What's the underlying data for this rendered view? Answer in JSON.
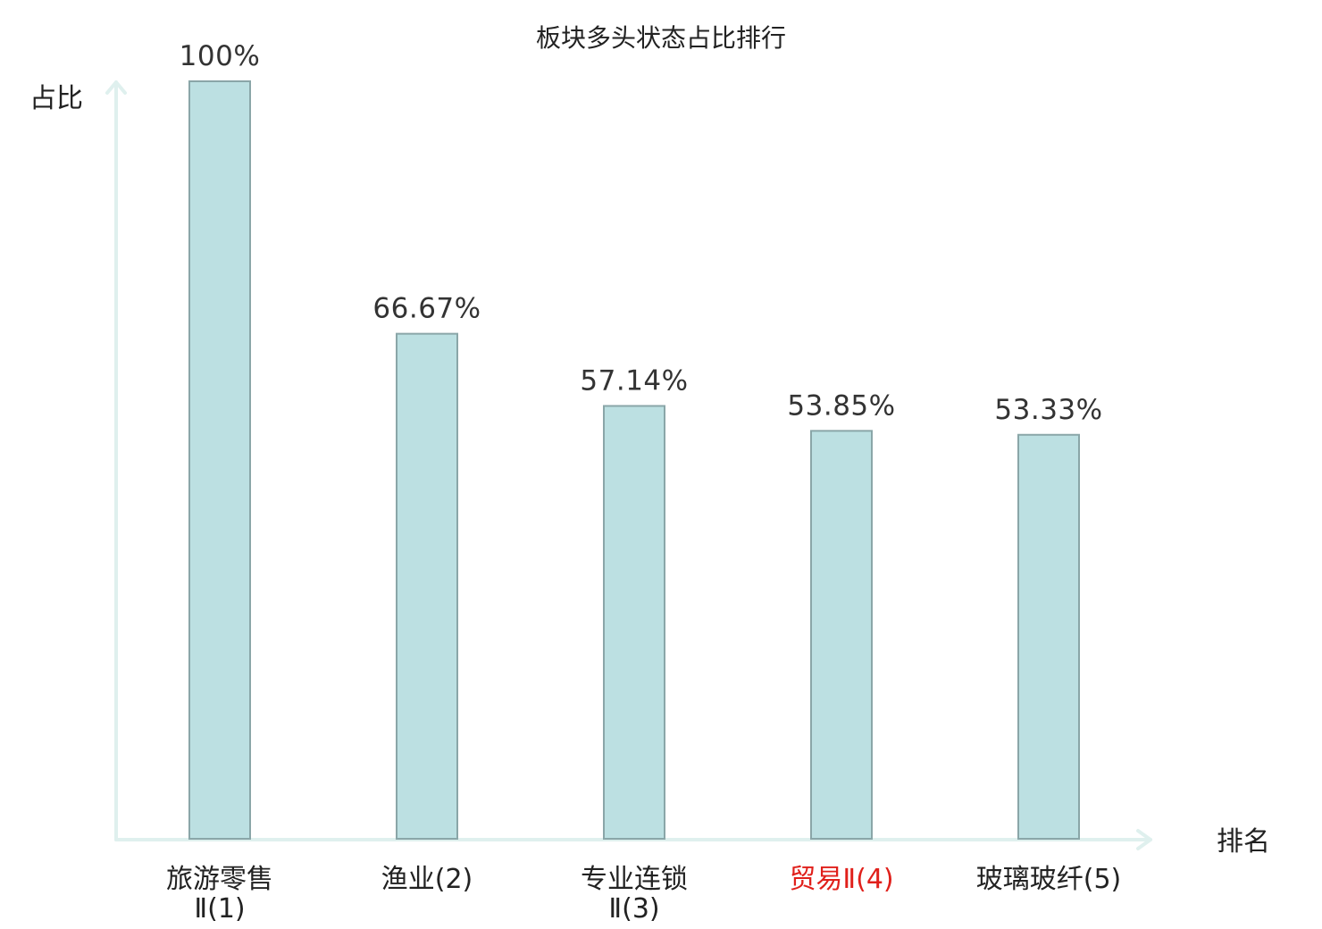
{
  "chart_data": {
    "type": "bar",
    "title": "板块多头状态占比排行",
    "xlabel": "排名",
    "ylabel": "占比",
    "ylim": [
      0,
      100
    ],
    "categories": [
      {
        "lines": [
          "旅游零售",
          "Ⅱ(1)"
        ],
        "highlight": false
      },
      {
        "lines": [
          "渔业(2)"
        ],
        "highlight": false
      },
      {
        "lines": [
          "专业连锁",
          "Ⅱ(3)"
        ],
        "highlight": false
      },
      {
        "lines": [
          "贸易Ⅱ(4)"
        ],
        "highlight": true
      },
      {
        "lines": [
          "玻璃玻纤(5)"
        ],
        "highlight": false
      }
    ],
    "values": [
      100,
      66.67,
      57.14,
      53.85,
      53.33
    ],
    "value_labels": [
      "100%",
      "66.67%",
      "57.14%",
      "53.85%",
      "53.33%"
    ],
    "grid": false,
    "legend": "none",
    "colors": {
      "bar": "#bce0e2",
      "bar_border": "#8aa6a8",
      "axis": "#dff0ee",
      "highlight_label": "#e0201b"
    }
  }
}
